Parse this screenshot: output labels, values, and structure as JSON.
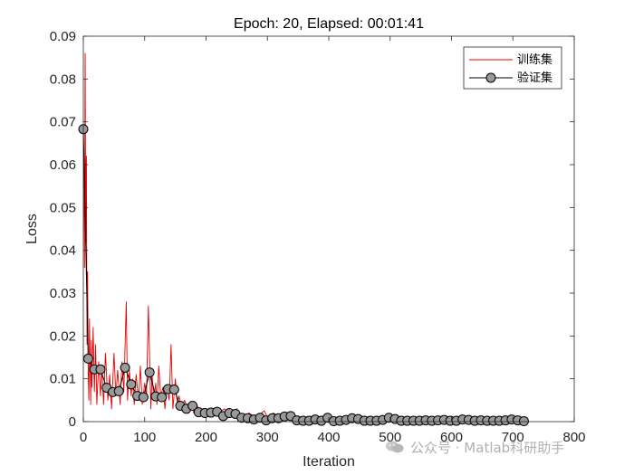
{
  "chart_data": {
    "type": "line",
    "title": "Epoch: 20, Elapsed: 00:01:41",
    "xlabel": "Iteration",
    "ylabel": "Loss",
    "xlim": [
      0,
      800
    ],
    "ylim": [
      0,
      0.09
    ],
    "xticks": [
      "0",
      "100",
      "200",
      "300",
      "400",
      "500",
      "600",
      "700",
      "800"
    ],
    "yticks": [
      "0",
      "0.01",
      "0.02",
      "0.03",
      "0.04",
      "0.05",
      "0.06",
      "0.07",
      "0.08",
      "0.09"
    ],
    "legend_position": "top-right",
    "series": [
      {
        "name": "训练集",
        "color": "#e60000",
        "x": [
          1,
          2,
          3,
          4,
          5,
          6,
          7,
          8,
          9,
          10,
          11,
          12,
          13,
          14,
          15,
          16,
          18,
          20,
          22,
          25,
          28,
          30,
          33,
          36,
          40,
          43,
          46,
          50,
          53,
          56,
          60,
          63,
          66,
          70,
          72,
          75,
          78,
          80,
          83,
          86,
          90,
          93,
          96,
          100,
          103,
          106,
          110,
          112,
          115,
          118,
          120,
          123,
          126,
          130,
          133,
          136,
          140,
          143,
          146,
          150,
          153,
          156,
          160,
          165,
          170,
          175,
          180,
          185,
          190,
          195,
          200,
          210,
          220,
          230,
          240,
          250,
          260,
          270,
          280,
          290,
          295,
          300,
          310,
          320,
          330,
          340,
          350,
          360,
          370,
          380,
          390,
          400,
          420,
          440,
          460,
          480,
          500,
          520,
          540,
          560,
          580,
          600,
          620,
          640,
          660,
          680,
          700,
          720
        ],
        "values": [
          0.058,
          0.036,
          0.086,
          0.042,
          0.062,
          0.018,
          0.035,
          0.011,
          0.005,
          0.024,
          0.014,
          0.004,
          0.019,
          0.008,
          0.015,
          0.022,
          0.007,
          0.018,
          0.004,
          0.014,
          0.006,
          0.013,
          0.004,
          0.016,
          0.005,
          0.011,
          0.003,
          0.016,
          0.006,
          0.012,
          0.004,
          0.014,
          0.007,
          0.028,
          0.005,
          0.012,
          0.006,
          0.01,
          0.004,
          0.011,
          0.005,
          0.013,
          0.004,
          0.009,
          0.006,
          0.027,
          0.003,
          0.011,
          0.005,
          0.009,
          0.004,
          0.013,
          0.006,
          0.008,
          0.003,
          0.008,
          0.005,
          0.018,
          0.003,
          0.01,
          0.004,
          0.006,
          0.003,
          0.005,
          0.003,
          0.004,
          0.002,
          0.004,
          0.002,
          0.003,
          0.002,
          0.003,
          0.002,
          0.003,
          0.001,
          0.003,
          0.001,
          0.002,
          0.001,
          0.002,
          0.0025,
          0.001,
          0.002,
          0.001,
          0.0015,
          0.001,
          0.001,
          0.0008,
          0.0012,
          0.0008,
          0.0012,
          0.0006,
          0.0008,
          0.0006,
          0.0006,
          0.0005,
          0.0006,
          0.0005,
          0.0005,
          0.0004,
          0.0005,
          0.0004,
          0.0005,
          0.0004,
          0.0004,
          0.0004,
          0.0004,
          0.0004
        ]
      },
      {
        "name": "验证集",
        "color": "#000000",
        "marker_fill": "#999999",
        "x": [
          0,
          8,
          18,
          28,
          38,
          48,
          58,
          68,
          78,
          88,
          98,
          108,
          118,
          128,
          138,
          148,
          158,
          168,
          178,
          188,
          198,
          208,
          218,
          228,
          238,
          248,
          258,
          268,
          278,
          288,
          298,
          308,
          318,
          328,
          338,
          348,
          358,
          368,
          378,
          388,
          398,
          408,
          418,
          428,
          438,
          448,
          458,
          468,
          478,
          488,
          498,
          508,
          518,
          528,
          538,
          548,
          558,
          568,
          578,
          588,
          598,
          608,
          618,
          628,
          638,
          648,
          658,
          668,
          678,
          688,
          698,
          708,
          718
        ],
        "values": [
          0.0683,
          0.0147,
          0.0122,
          0.0122,
          0.0079,
          0.0069,
          0.0071,
          0.0126,
          0.0087,
          0.006,
          0.0057,
          0.0115,
          0.0059,
          0.0057,
          0.0076,
          0.0075,
          0.0037,
          0.003,
          0.0037,
          0.0022,
          0.002,
          0.0021,
          0.0023,
          0.0013,
          0.002,
          0.0018,
          0.0009,
          0.0008,
          0.0005,
          0.0009,
          0.0003,
          0.0008,
          0.0008,
          0.0012,
          0.0013,
          0.0003,
          0.0002,
          0.0002,
          0.0005,
          0.0002,
          0.0009,
          0.0001,
          0.0002,
          0.0004,
          0.0008,
          0.0006,
          0.0002,
          0.0002,
          0.0002,
          0.0004,
          0.0009,
          0.0006,
          0.0002,
          0.0002,
          0.0002,
          0.0002,
          0.0003,
          0.0002,
          0.0003,
          0.0004,
          0.0002,
          0.0002,
          0.0005,
          0.0004,
          0.0002,
          0.0003,
          0.0002,
          0.0002,
          0.0002,
          0.0003,
          0.0005,
          0.0003,
          0.0001
        ]
      }
    ]
  },
  "watermark": {
    "icon": "wechat-icon",
    "text": "公众号 · Matlab科研助手"
  }
}
